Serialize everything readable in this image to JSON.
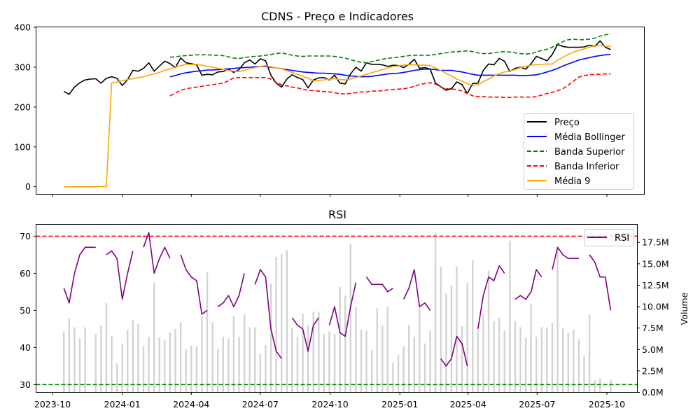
{
  "chart_data": [
    {
      "type": "line",
      "title": "CDNS - Preço e Indicadores",
      "xlabel": "",
      "ylabel": "",
      "x_start": "2023-10-16",
      "x_frequency": "weekly",
      "ylim": [
        -19,
        401
      ],
      "yticks": [
        "0",
        "100",
        "200",
        "300",
        "400"
      ],
      "ytick_values": [
        0,
        100,
        200,
        300,
        400
      ],
      "legend_position": "lower-right",
      "legend": [
        "Preço",
        "Média Bollinger",
        "Banda Superior",
        "Banda Inferior",
        "Média 9"
      ],
      "series": [
        {
          "name": "Preço",
          "color": "#000000",
          "style": "solid",
          "values": [
            239,
            232,
            250,
            261,
            268,
            270,
            271,
            260,
            272,
            276,
            272,
            254,
            269,
            292,
            290,
            297,
            311,
            290,
            303,
            315,
            309,
            299,
            323,
            311,
            309,
            306,
            280,
            282,
            281,
            288,
            289,
            295,
            287,
            294,
            311,
            318,
            308,
            321,
            316,
            280,
            260,
            250,
            270,
            281,
            274,
            269,
            248,
            268,
            273,
            274,
            268,
            280,
            260,
            258,
            283,
            300,
            290,
            311,
            307,
            307,
            306,
            302,
            305,
            304,
            299,
            307,
            320,
            297,
            299,
            295,
            260,
            251,
            242,
            246,
            263,
            256,
            234,
            259,
            260,
            292,
            308,
            306,
            322,
            315,
            289,
            297,
            300,
            295,
            309,
            327,
            322,
            316,
            332,
            357,
            352,
            350,
            350,
            350,
            351,
            355,
            352,
            366,
            350,
            344
          ]
        },
        {
          "name": "Média Bollinger",
          "color": "#0000ff",
          "style": "solid",
          "values": [
            null,
            null,
            null,
            null,
            null,
            null,
            null,
            null,
            null,
            null,
            null,
            null,
            null,
            null,
            null,
            null,
            null,
            null,
            null,
            null,
            276,
            279,
            283,
            286,
            288,
            290,
            291,
            293,
            293,
            294,
            295,
            296,
            297,
            298,
            299,
            300,
            301,
            302,
            302,
            300,
            298,
            296,
            294,
            292,
            290,
            288,
            287,
            286,
            285,
            285,
            284,
            283,
            282,
            280,
            278,
            277,
            276,
            276,
            277,
            279,
            281,
            283,
            284,
            285,
            287,
            289,
            292,
            294,
            295,
            295,
            294,
            292,
            292,
            292,
            290,
            288,
            285,
            282,
            280,
            280,
            280,
            280,
            280,
            280,
            280,
            280,
            279,
            279,
            280,
            281,
            284,
            288,
            292,
            297,
            303,
            308,
            313,
            318,
            321,
            324,
            327,
            329,
            331,
            332
          ]
        },
        {
          "name": "Banda Superior",
          "color": "#008000",
          "style": "dashed",
          "values": [
            null,
            null,
            null,
            null,
            null,
            null,
            null,
            null,
            null,
            null,
            null,
            null,
            null,
            null,
            null,
            null,
            null,
            null,
            null,
            null,
            325,
            326,
            328,
            329,
            330,
            331,
            331,
            331,
            330,
            330,
            329,
            326,
            323,
            322,
            324,
            326,
            327,
            328,
            330,
            332,
            334,
            336,
            333,
            330,
            328,
            327,
            328,
            328,
            328,
            328,
            328,
            327,
            325,
            323,
            319,
            315,
            312,
            311,
            314,
            317,
            320,
            322,
            324,
            325,
            327,
            329,
            330,
            330,
            330,
            330,
            332,
            334,
            336,
            338,
            339,
            340,
            341,
            339,
            336,
            334,
            334,
            336,
            338,
            339,
            338,
            336,
            334,
            333,
            334,
            338,
            342,
            345,
            350,
            358,
            364,
            369,
            370,
            369,
            369,
            370,
            373,
            378,
            381,
            384
          ]
        },
        {
          "name": "Banda Inferior",
          "color": "#ff0000",
          "style": "dashed",
          "values": [
            null,
            null,
            null,
            null,
            null,
            null,
            null,
            null,
            null,
            null,
            null,
            null,
            null,
            null,
            null,
            null,
            null,
            null,
            null,
            null,
            228,
            235,
            242,
            246,
            248,
            250,
            252,
            254,
            256,
            258,
            260,
            266,
            273,
            274,
            274,
            274,
            274,
            274,
            274,
            270,
            262,
            256,
            253,
            250,
            248,
            245,
            242,
            241,
            240,
            239,
            238,
            236,
            233,
            233,
            234,
            236,
            238,
            238,
            240,
            240,
            241,
            243,
            244,
            245,
            246,
            248,
            252,
            256,
            259,
            261,
            258,
            250,
            246,
            245,
            244,
            240,
            234,
            228,
            226,
            226,
            225,
            225,
            225,
            224,
            224,
            225,
            225,
            225,
            225,
            226,
            230,
            234,
            237,
            241,
            246,
            255,
            265,
            275,
            279,
            281,
            282,
            282,
            283,
            283
          ]
        },
        {
          "name": "Média 9",
          "color": "#ffa500",
          "style": "solid",
          "values": [
            0,
            0,
            0,
            0,
            0,
            0,
            0,
            0,
            0,
            260,
            263,
            266,
            269,
            271,
            274,
            276,
            280,
            283,
            287,
            292,
            296,
            300,
            304,
            307,
            307,
            307,
            305,
            302,
            300,
            297,
            295,
            292,
            290,
            289,
            292,
            296,
            299,
            302,
            304,
            301,
            298,
            296,
            291,
            287,
            282,
            277,
            272,
            266,
            267,
            268,
            270,
            271,
            269,
            268,
            270,
            274,
            278,
            282,
            286,
            290,
            294,
            298,
            302,
            303,
            305,
            306,
            306,
            305,
            305,
            304,
            298,
            292,
            284,
            278,
            270,
            265,
            258,
            254,
            256,
            264,
            270,
            278,
            284,
            288,
            290,
            294,
            299,
            302,
            305,
            306,
            307,
            308,
            308,
            318,
            325,
            332,
            338,
            342,
            346,
            350,
            353,
            355,
            353,
            352
          ]
        }
      ]
    },
    {
      "type": "line",
      "title": "RSI",
      "xlabel": "",
      "ylabel": "",
      "ylabel_right": "Volume",
      "x_start": "2023-10-16",
      "x_frequency": "weekly",
      "ylim": [
        27.9,
        73.2
      ],
      "ylim_right_millions": [
        0,
        19.6
      ],
      "yticks": [
        "30",
        "40",
        "50",
        "60",
        "70"
      ],
      "ytick_values": [
        30,
        40,
        50,
        60,
        70
      ],
      "yticks_right": [
        "0.0M",
        "2.5M",
        "5.0M",
        "7.5M",
        "10.0M",
        "12.5M",
        "15.0M",
        "17.5M"
      ],
      "ytick_right_values": [
        0,
        2.5,
        5,
        7.5,
        10,
        12.5,
        15,
        17.5
      ],
      "xticks": [
        "2023-10",
        "2024-01",
        "2024-04",
        "2024-07",
        "2024-10",
        "2025-01",
        "2025-04",
        "2025-07",
        "2025-10"
      ],
      "xtick_dates": [
        "2023-10-01",
        "2024-01-01",
        "2024-04-01",
        "2024-07-01",
        "2024-10-01",
        "2025-01-01",
        "2025-04-01",
        "2025-07-01",
        "2025-10-01"
      ],
      "legend_position": "upper-right",
      "legend": [
        "RSI"
      ],
      "reference_lines": [
        {
          "value": 70,
          "color": "#ff0000",
          "style": "dashed"
        },
        {
          "value": 30,
          "color": "#008000",
          "style": "dashed"
        }
      ],
      "series": [
        {
          "name": "RSI",
          "color": "#800080",
          "style": "solid",
          "values": [
            56,
            52,
            60,
            65,
            67,
            67,
            67,
            null,
            65,
            66,
            64,
            53,
            60,
            66,
            null,
            67,
            71,
            60,
            64,
            67,
            64,
            null,
            65,
            61,
            59,
            58,
            49,
            50,
            null,
            51,
            52,
            54,
            51,
            54,
            60,
            null,
            57,
            61,
            59,
            45,
            39,
            37,
            null,
            48,
            46,
            45,
            39,
            46,
            48,
            null,
            46,
            51,
            44,
            43,
            51,
            57.5,
            null,
            59,
            57,
            57,
            57,
            55,
            56,
            null,
            53,
            56,
            61,
            51,
            52,
            50,
            null,
            37,
            35,
            37,
            43,
            41,
            35,
            null,
            45,
            54,
            59,
            58,
            62,
            60,
            null,
            53,
            54,
            53,
            55,
            61,
            59,
            null,
            61,
            67,
            65,
            64,
            64,
            64,
            null,
            65,
            63,
            59,
            59,
            50
          ]
        },
        {
          "name": "Volume",
          "unit": "millions",
          "color": "#d3d3d3",
          "type": "bar",
          "axis": "right",
          "values": [
            7.1,
            8.6,
            7.6,
            6.3,
            7.6,
            0,
            6.8,
            7.8,
            10.4,
            6.6,
            3.4,
            5.7,
            7.3,
            8.4,
            8.0,
            5.4,
            6.5,
            12.8,
            6.4,
            6.1,
            7.0,
            7.4,
            8.2,
            5.0,
            5.45,
            5.4,
            8.9,
            14.0,
            8.2,
            5.1,
            6.5,
            6.3,
            8.9,
            6.5,
            9.1,
            7.6,
            7.6,
            4.5,
            5.5,
            12.7,
            15.8,
            16.1,
            16.6,
            7.5,
            6.5,
            9.2,
            7.8,
            9.4,
            9.4,
            6.8,
            7.1,
            6.8,
            12.3,
            11.3,
            17.3,
            10.0,
            7.3,
            7.2,
            4.9,
            9.8,
            7.8,
            10.0,
            3.5,
            4.4,
            5.4,
            7.9,
            6.5,
            9.9,
            5.7,
            7.2,
            18.6,
            14.6,
            11.5,
            12.4,
            14.7,
            7.7,
            12.8,
            15.4,
            7.3,
            9.2,
            14.2,
            8.3,
            8.7,
            7.2,
            17.7,
            8.3,
            7.6,
            6.4,
            10.3,
            6.5,
            7.6,
            7.6,
            8.1,
            16.9,
            7.5,
            6.9,
            7.3,
            6.2,
            4.3,
            9.1,
            1.4,
            1.6,
            0,
            1.5
          ]
        }
      ]
    }
  ]
}
